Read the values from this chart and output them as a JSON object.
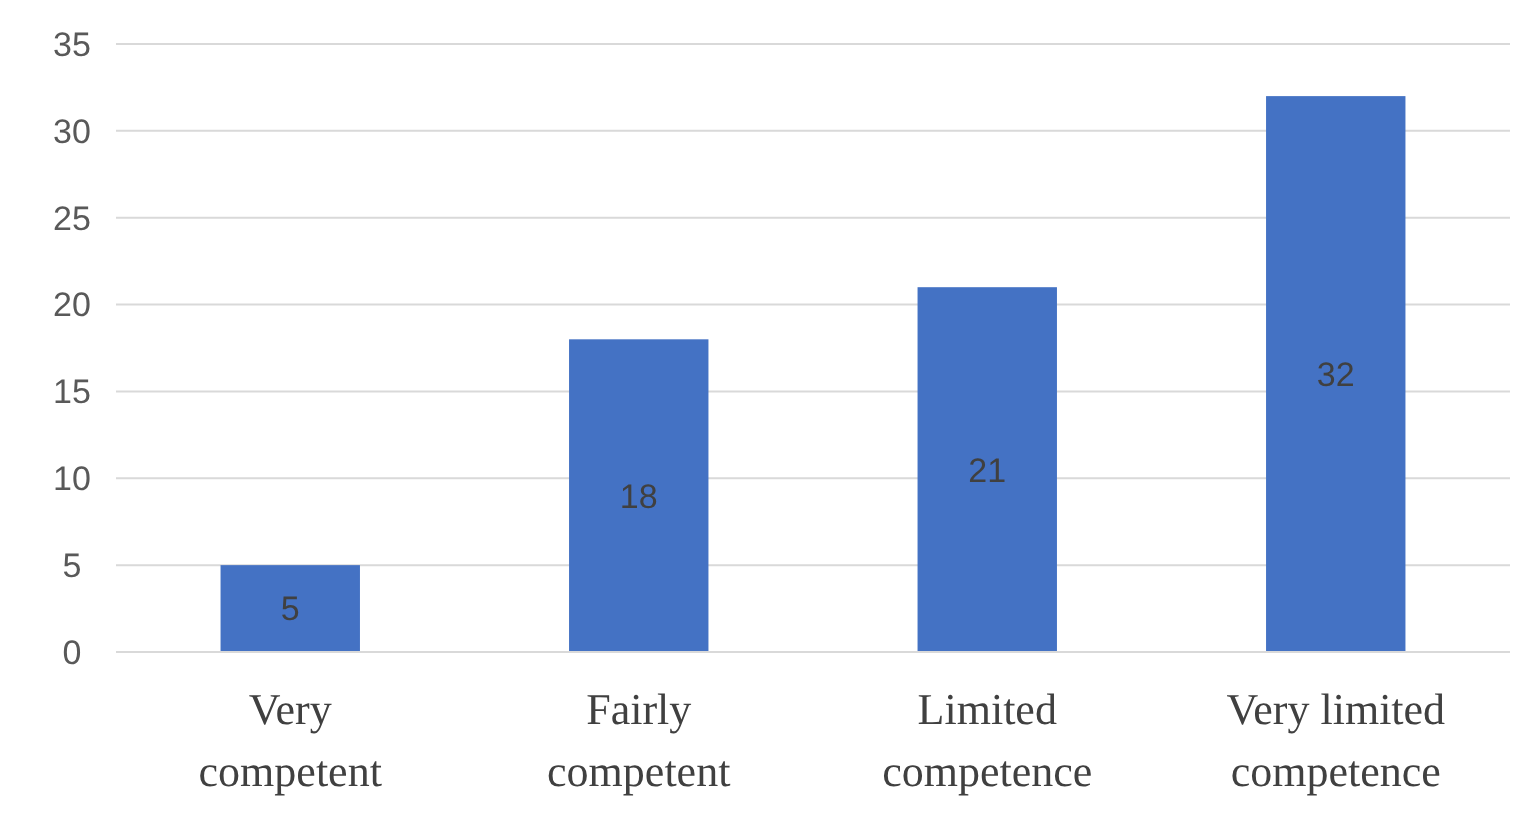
{
  "chart_data": {
    "type": "bar",
    "categories": [
      "Very competent",
      "Fairly competent",
      "Limited competence",
      "Very limited competence"
    ],
    "values": [
      5,
      18,
      21,
      32
    ],
    "color": "#4472c4",
    "ylim": [
      0,
      35
    ],
    "yticks": [
      0,
      5,
      10,
      15,
      20,
      25,
      30,
      35
    ],
    "grid": "y",
    "data_labels": true
  }
}
